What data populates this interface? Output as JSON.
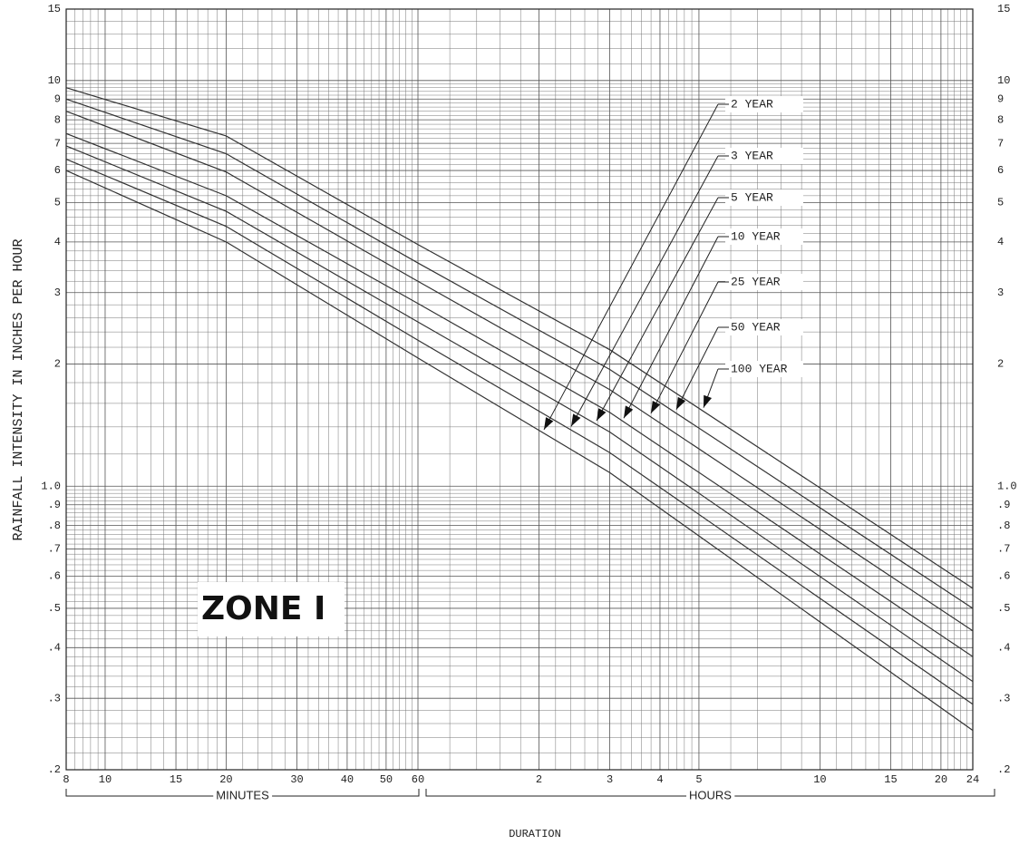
{
  "chart_data": {
    "type": "line",
    "ylabel": "RAINFALL INTENSITY IN INCHES PER HOUR",
    "xlabel": "DURATION",
    "x_group_labels": [
      "MINUTES",
      "HOURS"
    ],
    "annotation": "ZONE I",
    "log_x": true,
    "log_y": true,
    "grid": true,
    "xlim": [
      8,
      1440
    ],
    "xticks": [
      8,
      10,
      15,
      20,
      30,
      40,
      50,
      60,
      {
        "value": 120,
        "label": "2"
      },
      {
        "value": 180,
        "label": "3"
      },
      {
        "value": 240,
        "label": "4"
      },
      {
        "value": 300,
        "label": "5"
      },
      {
        "value": 600,
        "label": "10"
      },
      {
        "value": 900,
        "label": "15"
      },
      {
        "value": 1200,
        "label": "20"
      },
      {
        "value": 1440,
        "label": "24"
      }
    ],
    "ylim": [
      0.2,
      15
    ],
    "yticks": [
      15,
      10,
      9,
      8,
      7,
      6,
      5,
      4,
      3,
      2,
      {
        "value": 1,
        "label": "1.0"
      },
      {
        "value": 0.9,
        "label": ".9"
      },
      {
        "value": 0.8,
        "label": ".8"
      },
      {
        "value": 0.7,
        "label": ".7"
      },
      {
        "value": 0.6,
        "label": ".6"
      },
      {
        "value": 0.5,
        "label": ".5"
      },
      {
        "value": 0.4,
        "label": ".4"
      },
      {
        "value": 0.3,
        "label": ".3"
      },
      {
        "value": 0.2,
        "label": ".2"
      }
    ],
    "x": [
      8,
      20,
      60,
      180,
      1440
    ],
    "series": [
      {
        "name": "2 YEAR",
        "color": "#333333",
        "values": [
          6.0,
          4.0,
          2.07,
          1.08,
          0.25
        ]
      },
      {
        "name": "3 YEAR",
        "color": "#333333",
        "values": [
          6.4,
          4.37,
          2.29,
          1.21,
          0.29
        ]
      },
      {
        "name": "5 YEAR",
        "color": "#333333",
        "values": [
          6.9,
          4.76,
          2.54,
          1.36,
          0.33
        ]
      },
      {
        "name": "10 YEAR",
        "color": "#333333",
        "values": [
          7.4,
          5.2,
          2.82,
          1.52,
          0.38
        ]
      },
      {
        "name": "25 YEAR",
        "color": "#333333",
        "values": [
          8.4,
          5.95,
          3.2,
          1.73,
          0.44
        ]
      },
      {
        "name": "50 YEAR",
        "color": "#333333",
        "values": [
          9.0,
          6.6,
          3.55,
          1.94,
          0.5
        ]
      },
      {
        "name": "100 YEAR",
        "color": "#333333",
        "values": [
          9.6,
          7.3,
          3.94,
          2.17,
          0.56
        ]
      }
    ]
  }
}
